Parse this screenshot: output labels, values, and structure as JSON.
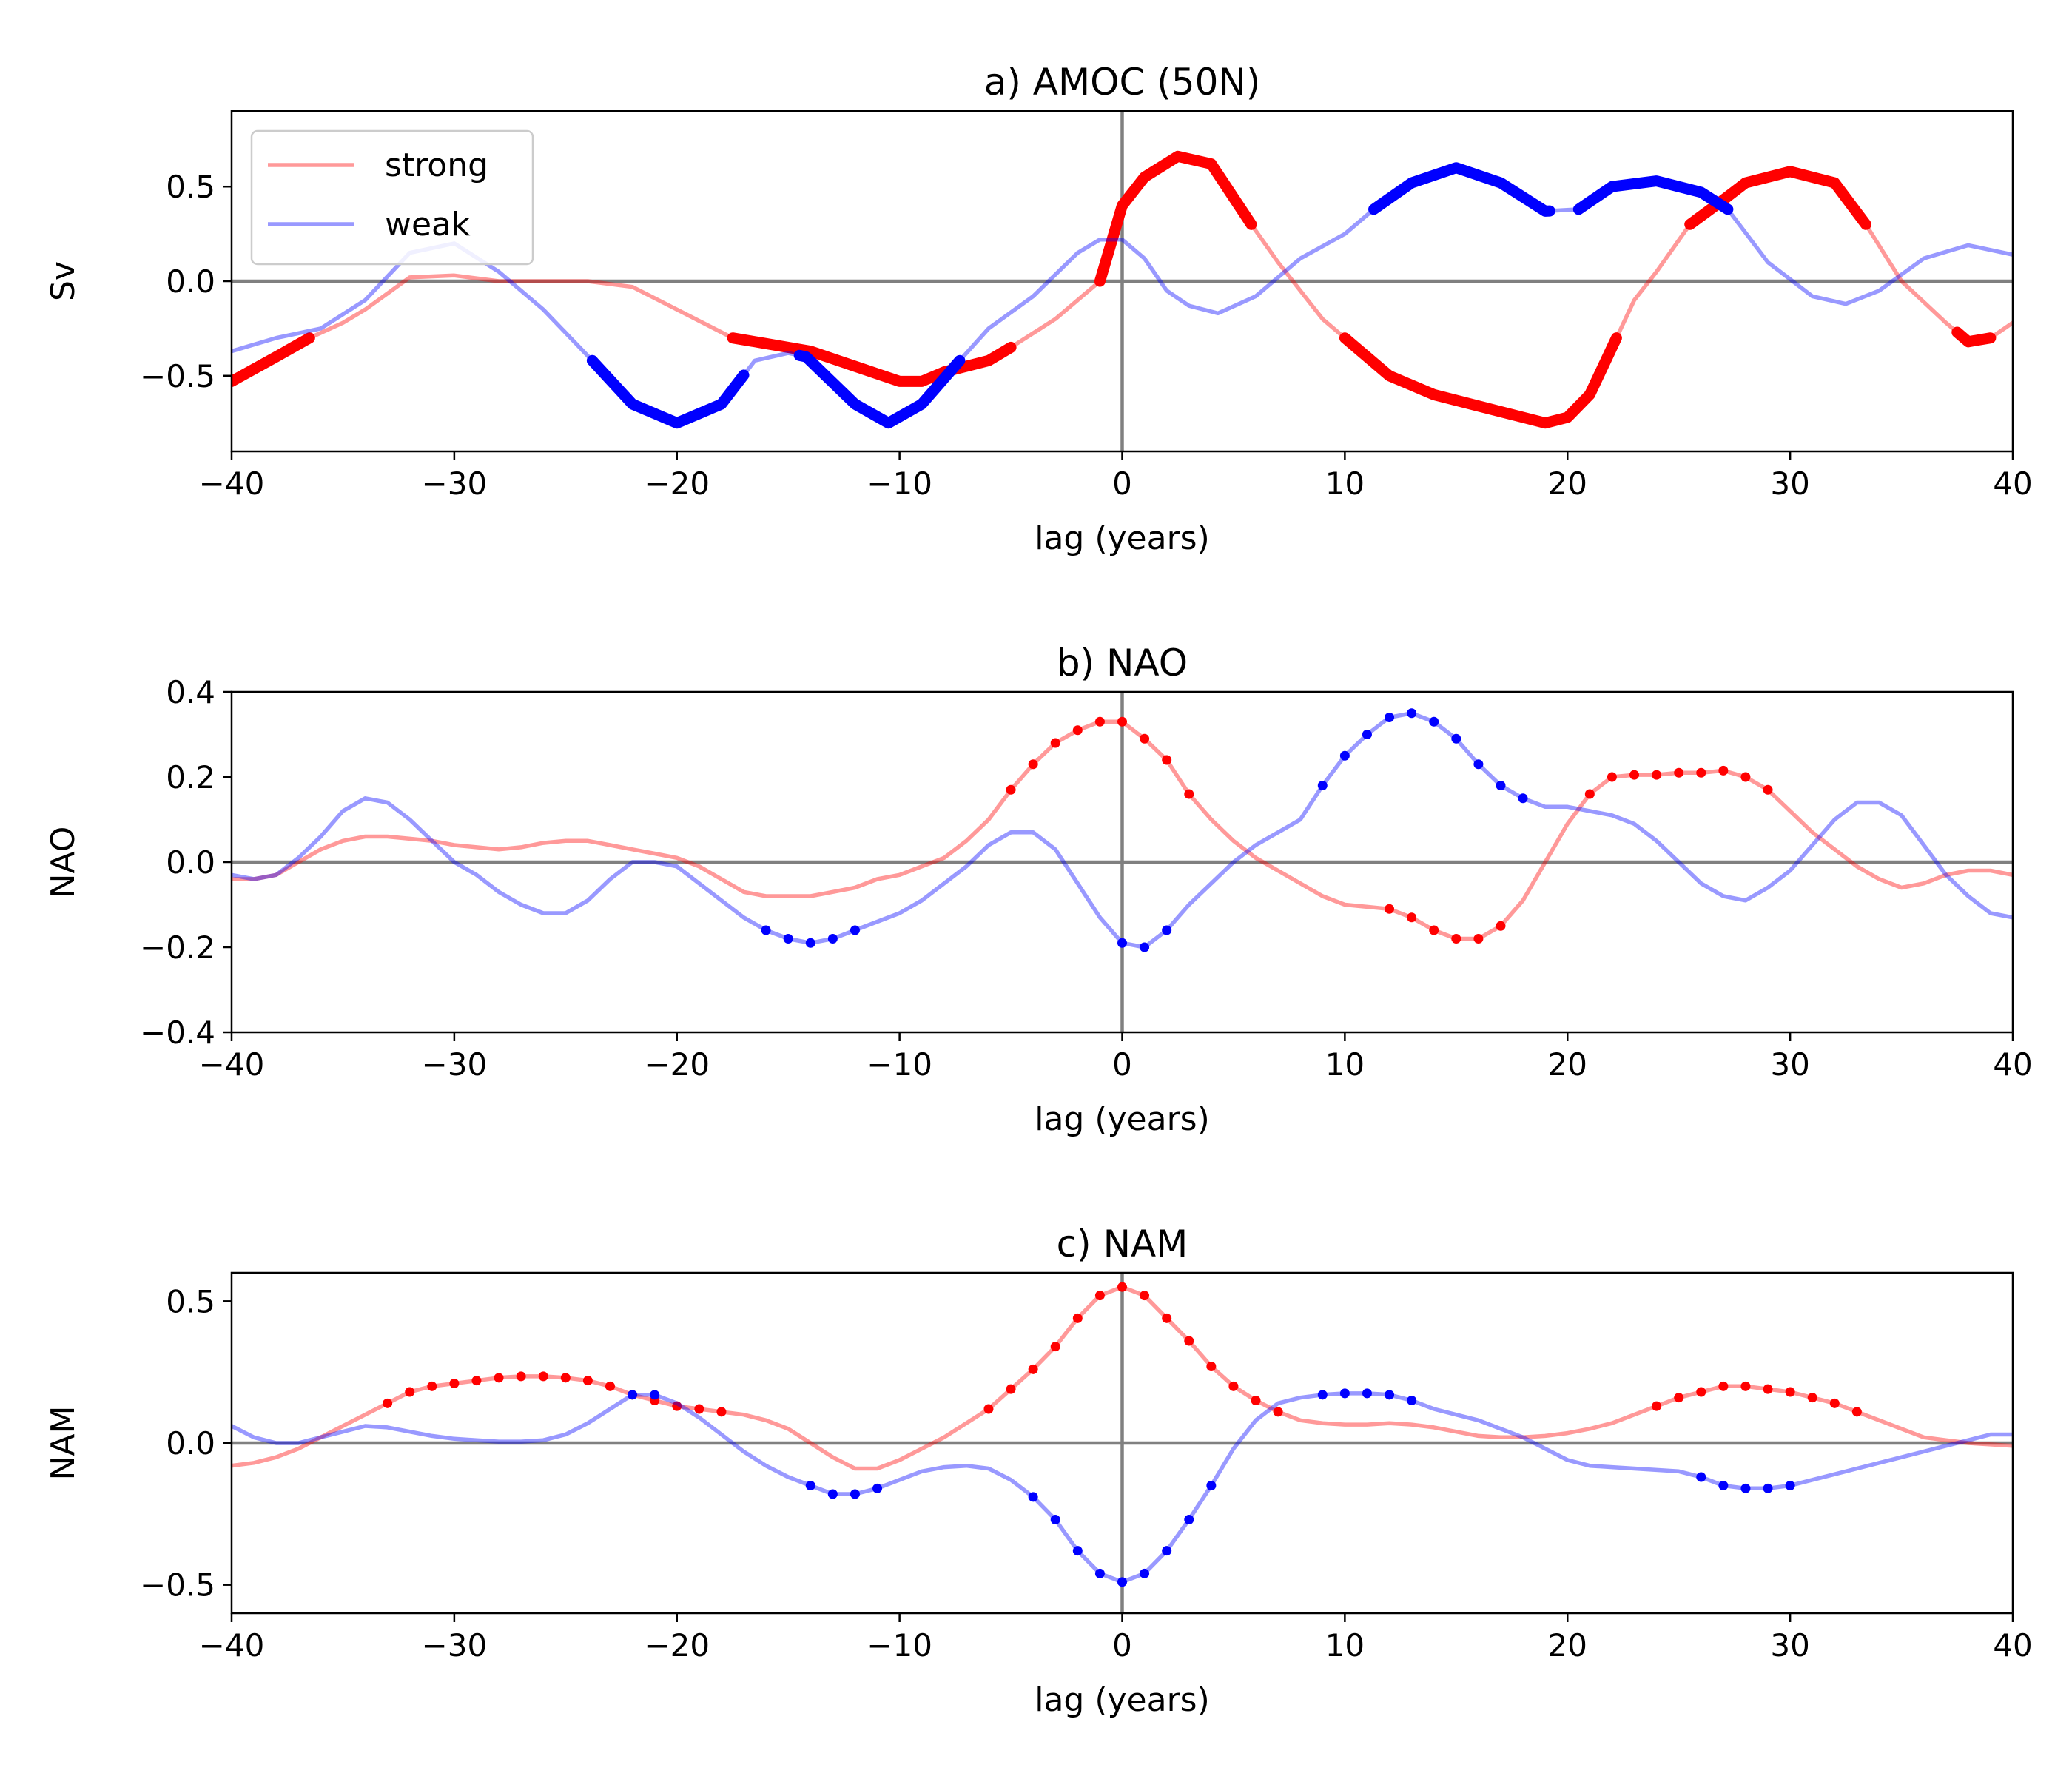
{
  "chart_data": [
    {
      "type": "line",
      "title": "a) AMOC (50N)",
      "xlabel": "lag (years)",
      "ylabel": "Sv",
      "xlim": [
        -40,
        40
      ],
      "ylim": [
        -0.9,
        0.9
      ],
      "xticks": [
        -40,
        -30,
        -20,
        -10,
        0,
        10,
        20,
        30,
        40
      ],
      "yticks": [
        -0.5,
        0.0,
        0.5
      ],
      "ytick_labels": [
        "−0.5",
        "0.0",
        "0.5"
      ],
      "legend": {
        "position": "top-left",
        "entries": [
          "strong",
          "weak"
        ]
      },
      "series": [
        {
          "name": "strong",
          "color": "#ff0000",
          "x": [
            -40,
            -38,
            -36.5,
            -35,
            -34,
            -32,
            -30,
            -28,
            -26,
            -24,
            -22,
            -20,
            -18,
            -17.5,
            -16,
            -14,
            -12,
            -10,
            -9,
            -8,
            -6,
            -5,
            -3,
            -1,
            0,
            1,
            2.5,
            4,
            5.8,
            7,
            9,
            10,
            12,
            14,
            16,
            18,
            19,
            20,
            21,
            22.2,
            23,
            24,
            25.5,
            27,
            28,
            30,
            32,
            33.4,
            35,
            37,
            38,
            39,
            40
          ],
          "y": [
            -0.53,
            -0.4,
            -0.3,
            -0.22,
            -0.15,
            0.02,
            0.03,
            0.0,
            0.0,
            0.0,
            -0.03,
            -0.15,
            -0.27,
            -0.3,
            -0.33,
            -0.37,
            -0.45,
            -0.53,
            -0.53,
            -0.48,
            -0.42,
            -0.35,
            -0.2,
            0.0,
            0.4,
            0.55,
            0.66,
            0.62,
            0.3,
            0.1,
            -0.2,
            -0.3,
            -0.5,
            -0.6,
            -0.66,
            -0.72,
            -0.75,
            -0.72,
            -0.6,
            -0.3,
            -0.1,
            0.05,
            0.3,
            0.43,
            0.52,
            0.58,
            0.52,
            0.3,
            0.0,
            -0.22,
            -0.32,
            -0.3,
            -0.22
          ],
          "highlight_ranges": [
            [
              -40,
              -36.5
            ],
            [
              -17.5,
              -5
            ],
            [
              -1,
              5.8
            ],
            [
              10,
              22.2
            ],
            [
              25.5,
              33.4
            ],
            [
              37.5,
              39
            ]
          ]
        },
        {
          "name": "weak",
          "color": "#0000ff",
          "x": [
            -40,
            -38,
            -36,
            -34,
            -32,
            -30,
            -28,
            -26,
            -23.8,
            -22,
            -20,
            -18,
            -16.5,
            -15,
            -14.2,
            -12,
            -10.5,
            -9,
            -7.3,
            -6,
            -4,
            -2,
            -1,
            0,
            1,
            2,
            3,
            4.3,
            6,
            8,
            10,
            11.3,
            13,
            15,
            17,
            19,
            20.5,
            22,
            24,
            26,
            27.2,
            29,
            31,
            32.5,
            34,
            36,
            38,
            40
          ],
          "y": [
            -0.37,
            -0.3,
            -0.25,
            -0.1,
            0.15,
            0.2,
            0.05,
            -0.15,
            -0.42,
            -0.65,
            -0.75,
            -0.65,
            -0.42,
            -0.38,
            -0.4,
            -0.65,
            -0.75,
            -0.65,
            -0.42,
            -0.25,
            -0.08,
            0.15,
            0.22,
            0.22,
            0.12,
            -0.05,
            -0.13,
            -0.17,
            -0.08,
            0.12,
            0.25,
            0.38,
            0.52,
            0.6,
            0.52,
            0.37,
            0.38,
            0.5,
            0.53,
            0.47,
            0.38,
            0.1,
            -0.08,
            -0.12,
            -0.05,
            0.12,
            0.19,
            0.14
          ],
          "highlight_ranges": [
            [
              -23.8,
              -17
            ],
            [
              -14.5,
              -7.3
            ],
            [
              11.3,
              19.2
            ],
            [
              20.5,
              27.2
            ]
          ]
        }
      ]
    },
    {
      "type": "line",
      "title": "b) NAO",
      "xlabel": "lag (years)",
      "ylabel": "NAO",
      "xlim": [
        -40,
        40
      ],
      "ylim": [
        -0.4,
        0.4
      ],
      "xticks": [
        -40,
        -30,
        -20,
        -10,
        0,
        10,
        20,
        30,
        40
      ],
      "yticks": [
        -0.4,
        -0.2,
        0.0,
        0.2,
        0.4
      ],
      "ytick_labels": [
        "−0.4",
        "−0.2",
        "0.0",
        "0.2",
        "0.4"
      ],
      "series": [
        {
          "name": "strong",
          "color": "#ff0000",
          "x": [
            -40,
            -39,
            -38,
            -37,
            -36,
            -35,
            -34,
            -33,
            -32,
            -31,
            -30,
            -29,
            -28,
            -27,
            -26,
            -25,
            -24,
            -23,
            -22,
            -21,
            -20,
            -19,
            -18,
            -17,
            -16,
            -15,
            -14,
            -13,
            -12,
            -11,
            -10,
            -9,
            -8,
            -7,
            -6,
            -5,
            -4,
            -3,
            -2,
            -1,
            0,
            1,
            2,
            3,
            4,
            5,
            6,
            7,
            8,
            9,
            10,
            11,
            12,
            13,
            14,
            15,
            16,
            17,
            18,
            19,
            20,
            21,
            22,
            23,
            24,
            25,
            26,
            27,
            28,
            29,
            30,
            31,
            32,
            33,
            34,
            35,
            36,
            37,
            38,
            39,
            40
          ],
          "y": [
            -0.04,
            -0.04,
            -0.03,
            0.0,
            0.03,
            0.05,
            0.06,
            0.06,
            0.055,
            0.05,
            0.04,
            0.035,
            0.03,
            0.035,
            0.045,
            0.05,
            0.05,
            0.04,
            0.03,
            0.02,
            0.01,
            -0.01,
            -0.04,
            -0.07,
            -0.08,
            -0.08,
            -0.08,
            -0.07,
            -0.06,
            -0.04,
            -0.03,
            -0.01,
            0.01,
            0.05,
            0.1,
            0.17,
            0.23,
            0.28,
            0.31,
            0.33,
            0.33,
            0.29,
            0.24,
            0.16,
            0.1,
            0.05,
            0.01,
            -0.02,
            -0.05,
            -0.08,
            -0.1,
            -0.105,
            -0.11,
            -0.13,
            -0.16,
            -0.18,
            -0.18,
            -0.15,
            -0.09,
            0.0,
            0.09,
            0.16,
            0.2,
            0.205,
            0.205,
            0.21,
            0.21,
            0.215,
            0.2,
            0.17,
            0.12,
            0.07,
            0.03,
            -0.01,
            -0.04,
            -0.06,
            -0.05,
            -0.03,
            -0.02,
            -0.02,
            -0.03
          ],
          "dot_x": [
            -5,
            -4,
            -3,
            -2,
            -1,
            0,
            1,
            2,
            3,
            12,
            13,
            14,
            15,
            16,
            17,
            21,
            22,
            23,
            24,
            25,
            26,
            27,
            28,
            29
          ]
        },
        {
          "name": "weak",
          "color": "#0000ff",
          "x": [
            -40,
            -39,
            -38,
            -37,
            -36,
            -35,
            -34,
            -33,
            -32,
            -31,
            -30,
            -29,
            -28,
            -27,
            -26,
            -25,
            -24,
            -23,
            -22,
            -21,
            -20,
            -19,
            -18,
            -17,
            -16,
            -15,
            -14,
            -13,
            -12,
            -11,
            -10,
            -9,
            -8,
            -7,
            -6,
            -5,
            -4,
            -3,
            -2,
            -1,
            0,
            1,
            2,
            3,
            4,
            5,
            6,
            7,
            8,
            9,
            10,
            11,
            12,
            13,
            14,
            15,
            16,
            17,
            18,
            19,
            20,
            21,
            22,
            23,
            24,
            25,
            26,
            27,
            28,
            29,
            30,
            31,
            32,
            33,
            34,
            35,
            36,
            37,
            38,
            39,
            40
          ],
          "y": [
            -0.03,
            -0.04,
            -0.03,
            0.01,
            0.06,
            0.12,
            0.15,
            0.14,
            0.1,
            0.05,
            0.0,
            -0.03,
            -0.07,
            -0.1,
            -0.12,
            -0.12,
            -0.09,
            -0.04,
            0.0,
            0.0,
            -0.01,
            -0.05,
            -0.09,
            -0.13,
            -0.16,
            -0.18,
            -0.19,
            -0.18,
            -0.16,
            -0.14,
            -0.12,
            -0.09,
            -0.05,
            -0.01,
            0.04,
            0.07,
            0.07,
            0.03,
            -0.05,
            -0.13,
            -0.19,
            -0.2,
            -0.16,
            -0.1,
            -0.05,
            0.0,
            0.04,
            0.07,
            0.1,
            0.18,
            0.25,
            0.3,
            0.34,
            0.35,
            0.33,
            0.29,
            0.23,
            0.18,
            0.15,
            0.13,
            0.13,
            0.12,
            0.11,
            0.09,
            0.05,
            0.0,
            -0.05,
            -0.08,
            -0.09,
            -0.06,
            -0.02,
            0.04,
            0.1,
            0.14,
            0.14,
            0.11,
            0.04,
            -0.03,
            -0.08,
            -0.12,
            -0.13
          ],
          "dot_x": [
            -16,
            -15,
            -14,
            -13,
            -12,
            0,
            1,
            2,
            9,
            10,
            11,
            12,
            13,
            14,
            15,
            16,
            17,
            18
          ]
        }
      ]
    },
    {
      "type": "line",
      "title": "c) NAM",
      "xlabel": "lag (years)",
      "ylabel": "NAM",
      "xlim": [
        -40,
        40
      ],
      "ylim": [
        -0.6,
        0.6
      ],
      "xticks": [
        -40,
        -30,
        -20,
        -10,
        0,
        10,
        20,
        30,
        40
      ],
      "yticks": [
        -0.5,
        0.0,
        0.5
      ],
      "ytick_labels": [
        "−0.5",
        "0.0",
        "0.5"
      ],
      "series": [
        {
          "name": "strong",
          "color": "#ff0000",
          "x": [
            -40,
            -39,
            -38,
            -37,
            -36,
            -35,
            -34,
            -33,
            -32,
            -31,
            -30,
            -29,
            -28,
            -27,
            -26,
            -25,
            -24,
            -23,
            -22,
            -21,
            -20,
            -19,
            -18,
            -17,
            -16,
            -15,
            -14,
            -13,
            -12,
            -11,
            -10,
            -9,
            -8,
            -7,
            -6,
            -5,
            -4,
            -3,
            -2,
            -1,
            0,
            1,
            2,
            3,
            4,
            5,
            6,
            7,
            8,
            9,
            10,
            11,
            12,
            13,
            14,
            15,
            16,
            17,
            18,
            19,
            20,
            21,
            22,
            23,
            24,
            25,
            26,
            27,
            28,
            29,
            30,
            31,
            32,
            33,
            34,
            35,
            36,
            37,
            38,
            39,
            40
          ],
          "y": [
            -0.08,
            -0.07,
            -0.05,
            -0.02,
            0.02,
            0.06,
            0.1,
            0.14,
            0.18,
            0.2,
            0.21,
            0.22,
            0.23,
            0.235,
            0.235,
            0.23,
            0.22,
            0.2,
            0.17,
            0.15,
            0.13,
            0.12,
            0.11,
            0.1,
            0.08,
            0.05,
            0.0,
            -0.05,
            -0.09,
            -0.09,
            -0.06,
            -0.02,
            0.02,
            0.07,
            0.12,
            0.19,
            0.26,
            0.34,
            0.44,
            0.52,
            0.55,
            0.52,
            0.44,
            0.36,
            0.27,
            0.2,
            0.15,
            0.11,
            0.08,
            0.07,
            0.065,
            0.065,
            0.07,
            0.065,
            0.055,
            0.04,
            0.025,
            0.02,
            0.02,
            0.025,
            0.035,
            0.05,
            0.07,
            0.1,
            0.13,
            0.16,
            0.18,
            0.2,
            0.2,
            0.19,
            0.18,
            0.16,
            0.14,
            0.11,
            0.08,
            0.05,
            0.02,
            0.01,
            0.0,
            -0.005,
            -0.01
          ],
          "dot_x": [
            -33,
            -32,
            -31,
            -30,
            -29,
            -28,
            -27,
            -26,
            -25,
            -24,
            -23,
            -22,
            -21,
            -20,
            -19,
            -18,
            -6,
            -5,
            -4,
            -3,
            -2,
            -1,
            0,
            1,
            2,
            3,
            4,
            5,
            6,
            7,
            24,
            25,
            26,
            27,
            28,
            29,
            30,
            31,
            32,
            33
          ]
        },
        {
          "name": "weak",
          "color": "#0000ff",
          "x": [
            -40,
            -39,
            -38,
            -37,
            -36,
            -35,
            -34,
            -33,
            -32,
            -31,
            -30,
            -29,
            -28,
            -27,
            -26,
            -25,
            -24,
            -23,
            -22,
            -21,
            -20,
            -19,
            -18,
            -17,
            -16,
            -15,
            -14,
            -13,
            -12,
            -11,
            -10,
            -9,
            -8,
            -7,
            -6,
            -5,
            -4,
            -3,
            -2,
            -1,
            0,
            1,
            2,
            3,
            4,
            5,
            6,
            7,
            8,
            9,
            10,
            11,
            12,
            13,
            14,
            15,
            16,
            17,
            18,
            19,
            20,
            21,
            22,
            23,
            24,
            25,
            26,
            27,
            28,
            29,
            30,
            31,
            32,
            33,
            34,
            35,
            36,
            37,
            38,
            39,
            40
          ],
          "y": [
            0.06,
            0.02,
            0.0,
            0.0,
            0.02,
            0.04,
            0.06,
            0.055,
            0.04,
            0.025,
            0.015,
            0.01,
            0.005,
            0.005,
            0.01,
            0.03,
            0.07,
            0.12,
            0.17,
            0.17,
            0.14,
            0.09,
            0.03,
            -0.03,
            -0.08,
            -0.12,
            -0.15,
            -0.18,
            -0.18,
            -0.16,
            -0.13,
            -0.1,
            -0.085,
            -0.08,
            -0.09,
            -0.13,
            -0.19,
            -0.27,
            -0.38,
            -0.46,
            -0.49,
            -0.46,
            -0.38,
            -0.27,
            -0.15,
            -0.02,
            0.08,
            0.14,
            0.16,
            0.17,
            0.175,
            0.175,
            0.17,
            0.15,
            0.12,
            0.1,
            0.08,
            0.05,
            0.02,
            -0.02,
            -0.06,
            -0.08,
            -0.085,
            -0.09,
            -0.095,
            -0.1,
            -0.12,
            -0.15,
            -0.16,
            -0.16,
            -0.15,
            -0.13,
            -0.11,
            -0.09,
            -0.07,
            -0.05,
            -0.03,
            -0.01,
            0.01,
            0.03,
            0.03
          ],
          "dot_x": [
            -14,
            -13,
            -12,
            -11,
            -22,
            -21,
            -4,
            -3,
            -2,
            -1,
            0,
            1,
            2,
            3,
            4,
            9,
            10,
            11,
            12,
            13,
            26,
            27,
            28,
            29,
            30
          ]
        }
      ]
    }
  ]
}
